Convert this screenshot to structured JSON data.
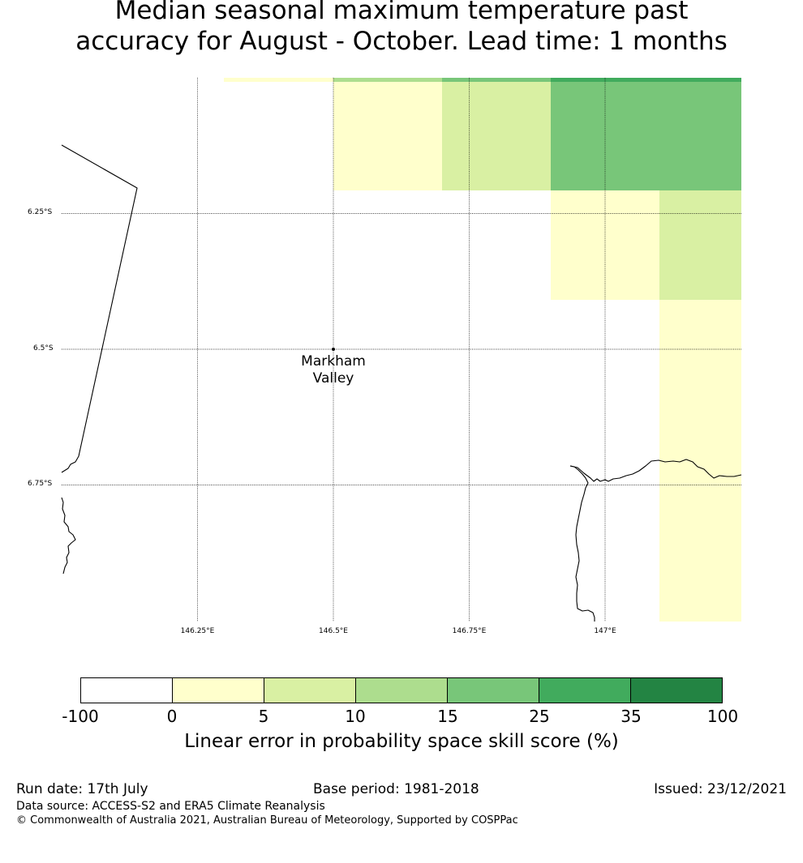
{
  "title": {
    "line1": "Median seasonal maximum temperature past",
    "line2": "accuracy for August - October. Lead time: 1 months"
  },
  "map": {
    "lat_labels": [
      "6.25°S",
      "6.5°S",
      "6.75°S"
    ],
    "lon_labels": [
      "146.25°E",
      "146.5°E",
      "146.75°E",
      "147°E"
    ],
    "place": {
      "line1": "Markham",
      "line2": "Valley"
    }
  },
  "colorbar": {
    "colors": [
      "#ffffff",
      "#ffffcc",
      "#d9f0a3",
      "#addd8e",
      "#78c679",
      "#41ab5d",
      "#238443"
    ],
    "ticks": [
      "-100",
      "0",
      "5",
      "10",
      "15",
      "25",
      "35",
      "100"
    ],
    "label": "Linear error in probability space skill score (%)"
  },
  "footer": {
    "run_date": "Run date: 17th July",
    "base_period": "Base period: 1981-2018",
    "issued": "Issued: 23/12/2021",
    "data_source": "Data source: ACCESS-S2 and ERA5 Climate Reanalysis",
    "copyright": "© Commonwealth of Australia 2021, Australian Bureau of Meteorology, Supported by COSPPac"
  }
}
